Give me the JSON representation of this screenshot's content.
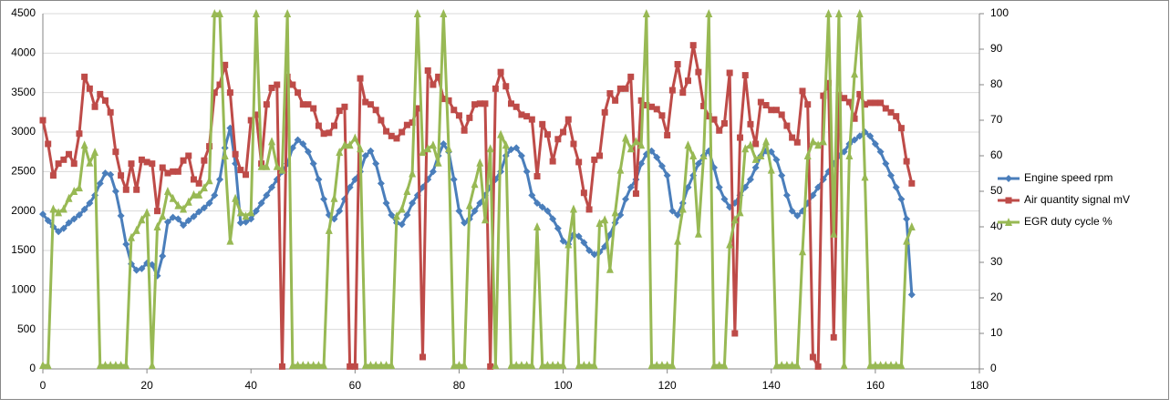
{
  "chart_data": {
    "type": "line",
    "x": [
      0,
      1,
      2,
      3,
      4,
      5,
      6,
      7,
      8,
      9,
      10,
      11,
      12,
      13,
      14,
      15,
      16,
      17,
      18,
      19,
      20,
      21,
      22,
      23,
      24,
      25,
      26,
      27,
      28,
      29,
      30,
      31,
      32,
      33,
      34,
      35,
      36,
      37,
      38,
      39,
      40,
      41,
      42,
      43,
      44,
      45,
      46,
      47,
      48,
      49,
      50,
      51,
      52,
      53,
      54,
      55,
      56,
      57,
      58,
      59,
      60,
      61,
      62,
      63,
      64,
      65,
      66,
      67,
      68,
      69,
      70,
      71,
      72,
      73,
      74,
      75,
      76,
      77,
      78,
      79,
      80,
      81,
      82,
      83,
      84,
      85,
      86,
      87,
      88,
      89,
      90,
      91,
      92,
      93,
      94,
      95,
      96,
      97,
      98,
      99,
      100,
      101,
      102,
      103,
      104,
      105,
      106,
      107,
      108,
      109,
      110,
      111,
      112,
      113,
      114,
      115,
      116,
      117,
      118,
      119,
      120,
      121,
      122,
      123,
      124,
      125,
      126,
      127,
      128,
      129,
      130,
      131,
      132,
      133,
      134,
      135,
      136,
      137,
      138,
      139,
      140,
      141,
      142,
      143,
      144,
      145,
      146,
      147,
      148,
      149,
      150,
      151,
      152,
      153,
      154,
      155,
      156,
      157,
      158,
      159,
      160,
      161,
      162,
      163,
      164,
      165,
      166,
      167
    ],
    "series": [
      {
        "name": "Engine speed rpm",
        "color": "#4a7ebb",
        "marker": "diamond",
        "axis": "y",
        "values": [
          1960,
          1880,
          1800,
          1740,
          1780,
          1850,
          1900,
          1950,
          2020,
          2100,
          2200,
          2350,
          2480,
          2460,
          2250,
          1940,
          1580,
          1330,
          1250,
          1270,
          1340,
          1320,
          1180,
          1430,
          1860,
          1920,
          1900,
          1820,
          1880,
          1930,
          1990,
          2040,
          2100,
          2200,
          2400,
          2800,
          3050,
          2600,
          1850,
          1860,
          1900,
          2000,
          2100,
          2200,
          2300,
          2400,
          2500,
          2600,
          2800,
          2900,
          2850,
          2750,
          2600,
          2400,
          2150,
          1950,
          1900,
          2000,
          2150,
          2300,
          2400,
          2500,
          2700,
          2760,
          2600,
          2350,
          2100,
          1950,
          1850,
          1830,
          1950,
          2100,
          2200,
          2300,
          2400,
          2500,
          2700,
          2850,
          2750,
          2400,
          2000,
          1850,
          1900,
          2000,
          2100,
          2200,
          2300,
          2400,
          2500,
          2700,
          2780,
          2800,
          2700,
          2500,
          2200,
          2100,
          2050,
          2000,
          1900,
          1780,
          1620,
          1580,
          1700,
          1680,
          1600,
          1500,
          1450,
          1480,
          1550,
          1700,
          1850,
          1950,
          2150,
          2300,
          2400,
          2600,
          2720,
          2760,
          2680,
          2570,
          2450,
          2000,
          1950,
          2100,
          2300,
          2450,
          2600,
          2700,
          2760,
          2550,
          2300,
          2150,
          2050,
          2100,
          2200,
          2300,
          2400,
          2550,
          2700,
          2760,
          2750,
          2650,
          2450,
          2200,
          2000,
          1940,
          2000,
          2100,
          2200,
          2300,
          2400,
          2500,
          2600,
          2700,
          2750,
          2850,
          2900,
          2950,
          3000,
          2950,
          2850,
          2750,
          2600,
          2450,
          2300,
          2150,
          1900,
          940
        ]
      },
      {
        "name": "Air quantity signal mV",
        "color": "#be4b48",
        "marker": "square",
        "axis": "y",
        "values": [
          3150,
          2850,
          2450,
          2600,
          2650,
          2720,
          2600,
          2980,
          3700,
          3550,
          3320,
          3480,
          3400,
          3250,
          2750,
          2450,
          2270,
          2600,
          2270,
          2650,
          2620,
          2600,
          2000,
          2550,
          2480,
          2500,
          2500,
          2640,
          2700,
          2400,
          2350,
          2640,
          2820,
          3500,
          3600,
          3850,
          3500,
          2720,
          2520,
          2460,
          3150,
          3220,
          2600,
          3350,
          3560,
          3600,
          30,
          3700,
          3600,
          3500,
          3350,
          3350,
          3300,
          3080,
          2980,
          2990,
          3080,
          3270,
          3320,
          30,
          30,
          3680,
          3380,
          3350,
          3280,
          3150,
          3010,
          2950,
          2920,
          3000,
          3090,
          3120,
          3300,
          150,
          3780,
          3600,
          3700,
          3420,
          3400,
          3280,
          3210,
          3020,
          3180,
          3350,
          3360,
          3360,
          30,
          3550,
          3760,
          3580,
          3360,
          3320,
          3220,
          3200,
          3160,
          2440,
          3100,
          2970,
          2630,
          2910,
          3000,
          3160,
          2850,
          2620,
          2230,
          2020,
          2650,
          2700,
          3250,
          3490,
          3400,
          3550,
          3550,
          3700,
          2220,
          3400,
          3340,
          3320,
          3290,
          3210,
          2960,
          3530,
          3860,
          3500,
          3650,
          4100,
          3760,
          3330,
          3200,
          3160,
          3020,
          3110,
          3750,
          450,
          2930,
          3720,
          3100,
          2850,
          3380,
          3340,
          3280,
          3280,
          3220,
          3080,
          2930,
          2870,
          3520,
          3350,
          150,
          30,
          3460,
          3620,
          400,
          3470,
          3430,
          3380,
          3170,
          3480,
          3350,
          3370,
          3370,
          3370,
          3300,
          3250,
          3200,
          3050,
          2630,
          2350
        ]
      },
      {
        "name": "EGR duty cycle %",
        "color": "#98b954",
        "marker": "triangle",
        "axis": "y2",
        "values": [
          1,
          1,
          45,
          44,
          45,
          48,
          50,
          51,
          63,
          58,
          61,
          1,
          1,
          1,
          1,
          1,
          1,
          37,
          39,
          42,
          44,
          1,
          40,
          43,
          50,
          48,
          46,
          45,
          47,
          49,
          49,
          51,
          53,
          100,
          100,
          60,
          36,
          48,
          44,
          43,
          44,
          100,
          57,
          57,
          64,
          57,
          56,
          100,
          1,
          1,
          1,
          1,
          1,
          1,
          1,
          39,
          48,
          61,
          63,
          63,
          65,
          62,
          1,
          1,
          1,
          1,
          1,
          1,
          43,
          45,
          50,
          55,
          100,
          61,
          62,
          63,
          58,
          100,
          62,
          1,
          1,
          1,
          46,
          52,
          58,
          42,
          62,
          1,
          66,
          63,
          1,
          1,
          1,
          1,
          1,
          40,
          1,
          1,
          1,
          1,
          1,
          35,
          45,
          1,
          1,
          1,
          1,
          41,
          42,
          28,
          44,
          56,
          65,
          62,
          64,
          63,
          100,
          1,
          1,
          1,
          1,
          1,
          36,
          45,
          63,
          60,
          38,
          60,
          100,
          1,
          1,
          1,
          35,
          42,
          44,
          62,
          63,
          59,
          60,
          64,
          56,
          1,
          1,
          1,
          1,
          1,
          33,
          60,
          64,
          63,
          64,
          100,
          38,
          100,
          1,
          60,
          83,
          100,
          54,
          1,
          1,
          1,
          1,
          1,
          1,
          1,
          36,
          40
        ]
      }
    ],
    "xlim": [
      0,
      180
    ],
    "xticks": [
      0,
      20,
      40,
      60,
      80,
      100,
      120,
      140,
      160,
      180
    ],
    "ylim": [
      0,
      4500
    ],
    "yticks": [
      0,
      500,
      1000,
      1500,
      2000,
      2500,
      3000,
      3500,
      4000,
      4500
    ],
    "y2lim": [
      0,
      100
    ],
    "y2ticks": [
      0,
      10,
      20,
      30,
      40,
      50,
      60,
      70,
      80,
      90,
      100
    ],
    "grid": true,
    "legend": "right"
  }
}
